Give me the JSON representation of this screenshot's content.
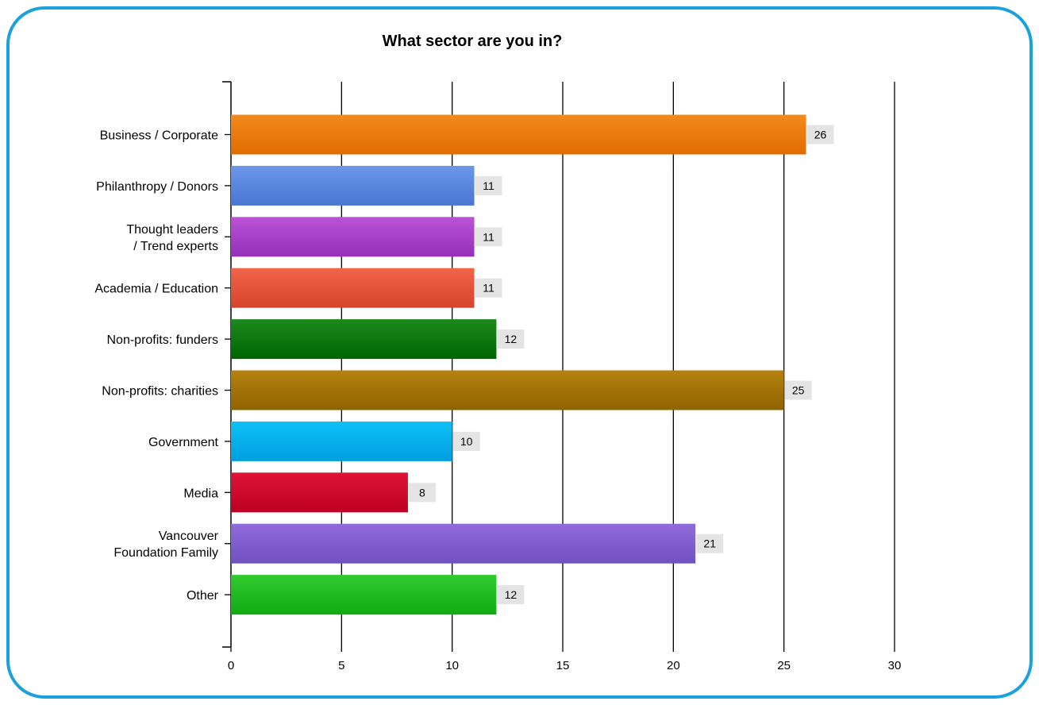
{
  "chart_data": {
    "type": "bar",
    "orientation": "horizontal",
    "title": "What sector are you in?",
    "xlabel": "",
    "ylabel": "",
    "xlim": [
      0,
      30
    ],
    "xticks": [
      0,
      5,
      10,
      15,
      20,
      25,
      30
    ],
    "grid": true,
    "legend": "none",
    "categories": [
      "Business / Corporate",
      "Philanthropy / Donors",
      "Thought leaders\n/ Trend experts",
      "Academia / Education",
      "Non-profits: funders",
      "Non-profits: charities",
      "Government",
      "Media",
      "Vancouver\nFoundation Family",
      "Other"
    ],
    "values": [
      26,
      11,
      11,
      11,
      12,
      25,
      10,
      8,
      21,
      12
    ],
    "colors": [
      [
        "#f58a1c",
        "#e06c00"
      ],
      [
        "#6b97ea",
        "#4a76d2"
      ],
      [
        "#bb52d8",
        "#9530b8"
      ],
      [
        "#f1664a",
        "#d6432d"
      ],
      [
        "#1d8a1d",
        "#006400"
      ],
      [
        "#b5820f",
        "#8f6300"
      ],
      [
        "#0fc0f5",
        "#009fe0"
      ],
      [
        "#df1437",
        "#bc0024"
      ],
      [
        "#906bdc",
        "#7150c0"
      ],
      [
        "#30cc30",
        "#13a913"
      ]
    ]
  }
}
